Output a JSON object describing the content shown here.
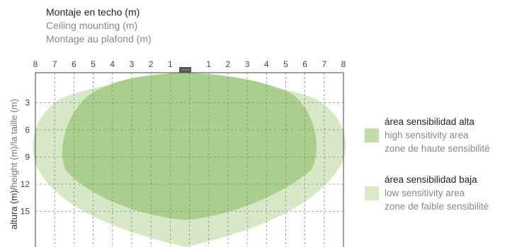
{
  "title": {
    "es": "Montaje en techo (m)",
    "en": "Ceiling mounting (m)",
    "fr": "Montage au plafond (m)"
  },
  "axis": {
    "ylabel_primary": "altura (m)/",
    "ylabel_secondary": "height (m)/la taille (m)",
    "x_ticks": [
      "8",
      "7",
      "6",
      "5",
      "4",
      "3",
      "2",
      "1",
      "",
      "1",
      "2",
      "3",
      "4",
      "5",
      "6",
      "7",
      "8"
    ],
    "y_ticks": [
      "3",
      "6",
      "9",
      "12",
      "15"
    ]
  },
  "legend": {
    "high": {
      "es": "área sensibilidad alta",
      "en": "high sensitivity area",
      "fr": "zone de haute sensibilité",
      "color": "#b8d8a0"
    },
    "low": {
      "es": "área sensibilidad baja",
      "en": "low sensitivity area",
      "fr": "zone de faible sensibilité",
      "color": "#d8e9c9"
    }
  },
  "colors": {
    "high_area": "#a9cf8c",
    "low_area": "#d6e8c5",
    "sensor": "#555555",
    "grid": "#888888",
    "frame": "#444444"
  }
}
